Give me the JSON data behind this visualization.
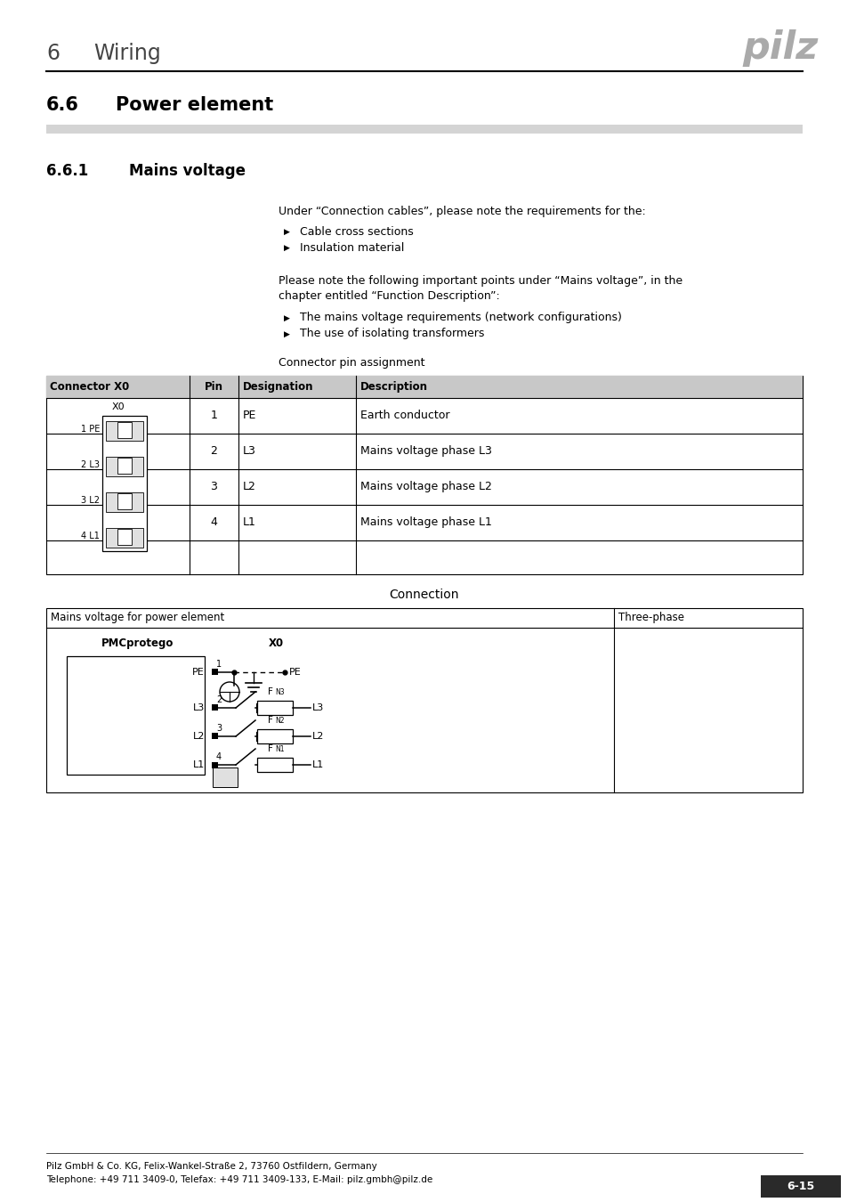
{
  "page_title_num": "6",
  "page_title_text": "Wiring",
  "section_num": "6.6",
  "section_text": "Power element",
  "subsection_num": "6.6.1",
  "subsection_text": "Mains voltage",
  "text1": "Under “Connection cables”, please note the requirements for the:",
  "bullet1_1": "Cable cross sections",
  "bullet1_2": "Insulation material",
  "text2a": "Please note the following important points under “Mains voltage”, in the",
  "text2b": "chapter entitled “Function Description”:",
  "bullet2_1": "The mains voltage requirements (network configurations)",
  "bullet2_2": "The use of isolating transformers",
  "connector_label": "Connector pin assignment",
  "connection_label": "Connection",
  "t1_headers": [
    "Connector X0",
    "Pin",
    "Designation",
    "Description"
  ],
  "t1_rows": [
    [
      "1",
      "PE",
      "Earth conductor"
    ],
    [
      "2",
      "L3",
      "Mains voltage phase L3"
    ],
    [
      "3",
      "L2",
      "Mains voltage phase L2"
    ],
    [
      "4",
      "L1",
      "Mains voltage phase L1"
    ]
  ],
  "t2_h1": "Mains voltage for power element",
  "t2_h2": "Three-phase",
  "footer_left1": "Pilz GmbH & Co. KG, Felix-Wankel-Straße 2, 73760 Ostfildern, Germany",
  "footer_left2": "Telephone: +49 711 3409-0, Telefax: +49 711 3409-133, E-Mail: pilz.gmbh@pilz.de",
  "footer_right": "6-15",
  "logo_color": "#aaaaaa",
  "gray_bar": "#d4d4d4",
  "table_hdr_bg": "#c8c8c8",
  "black": "#000000",
  "white": "#ffffff"
}
